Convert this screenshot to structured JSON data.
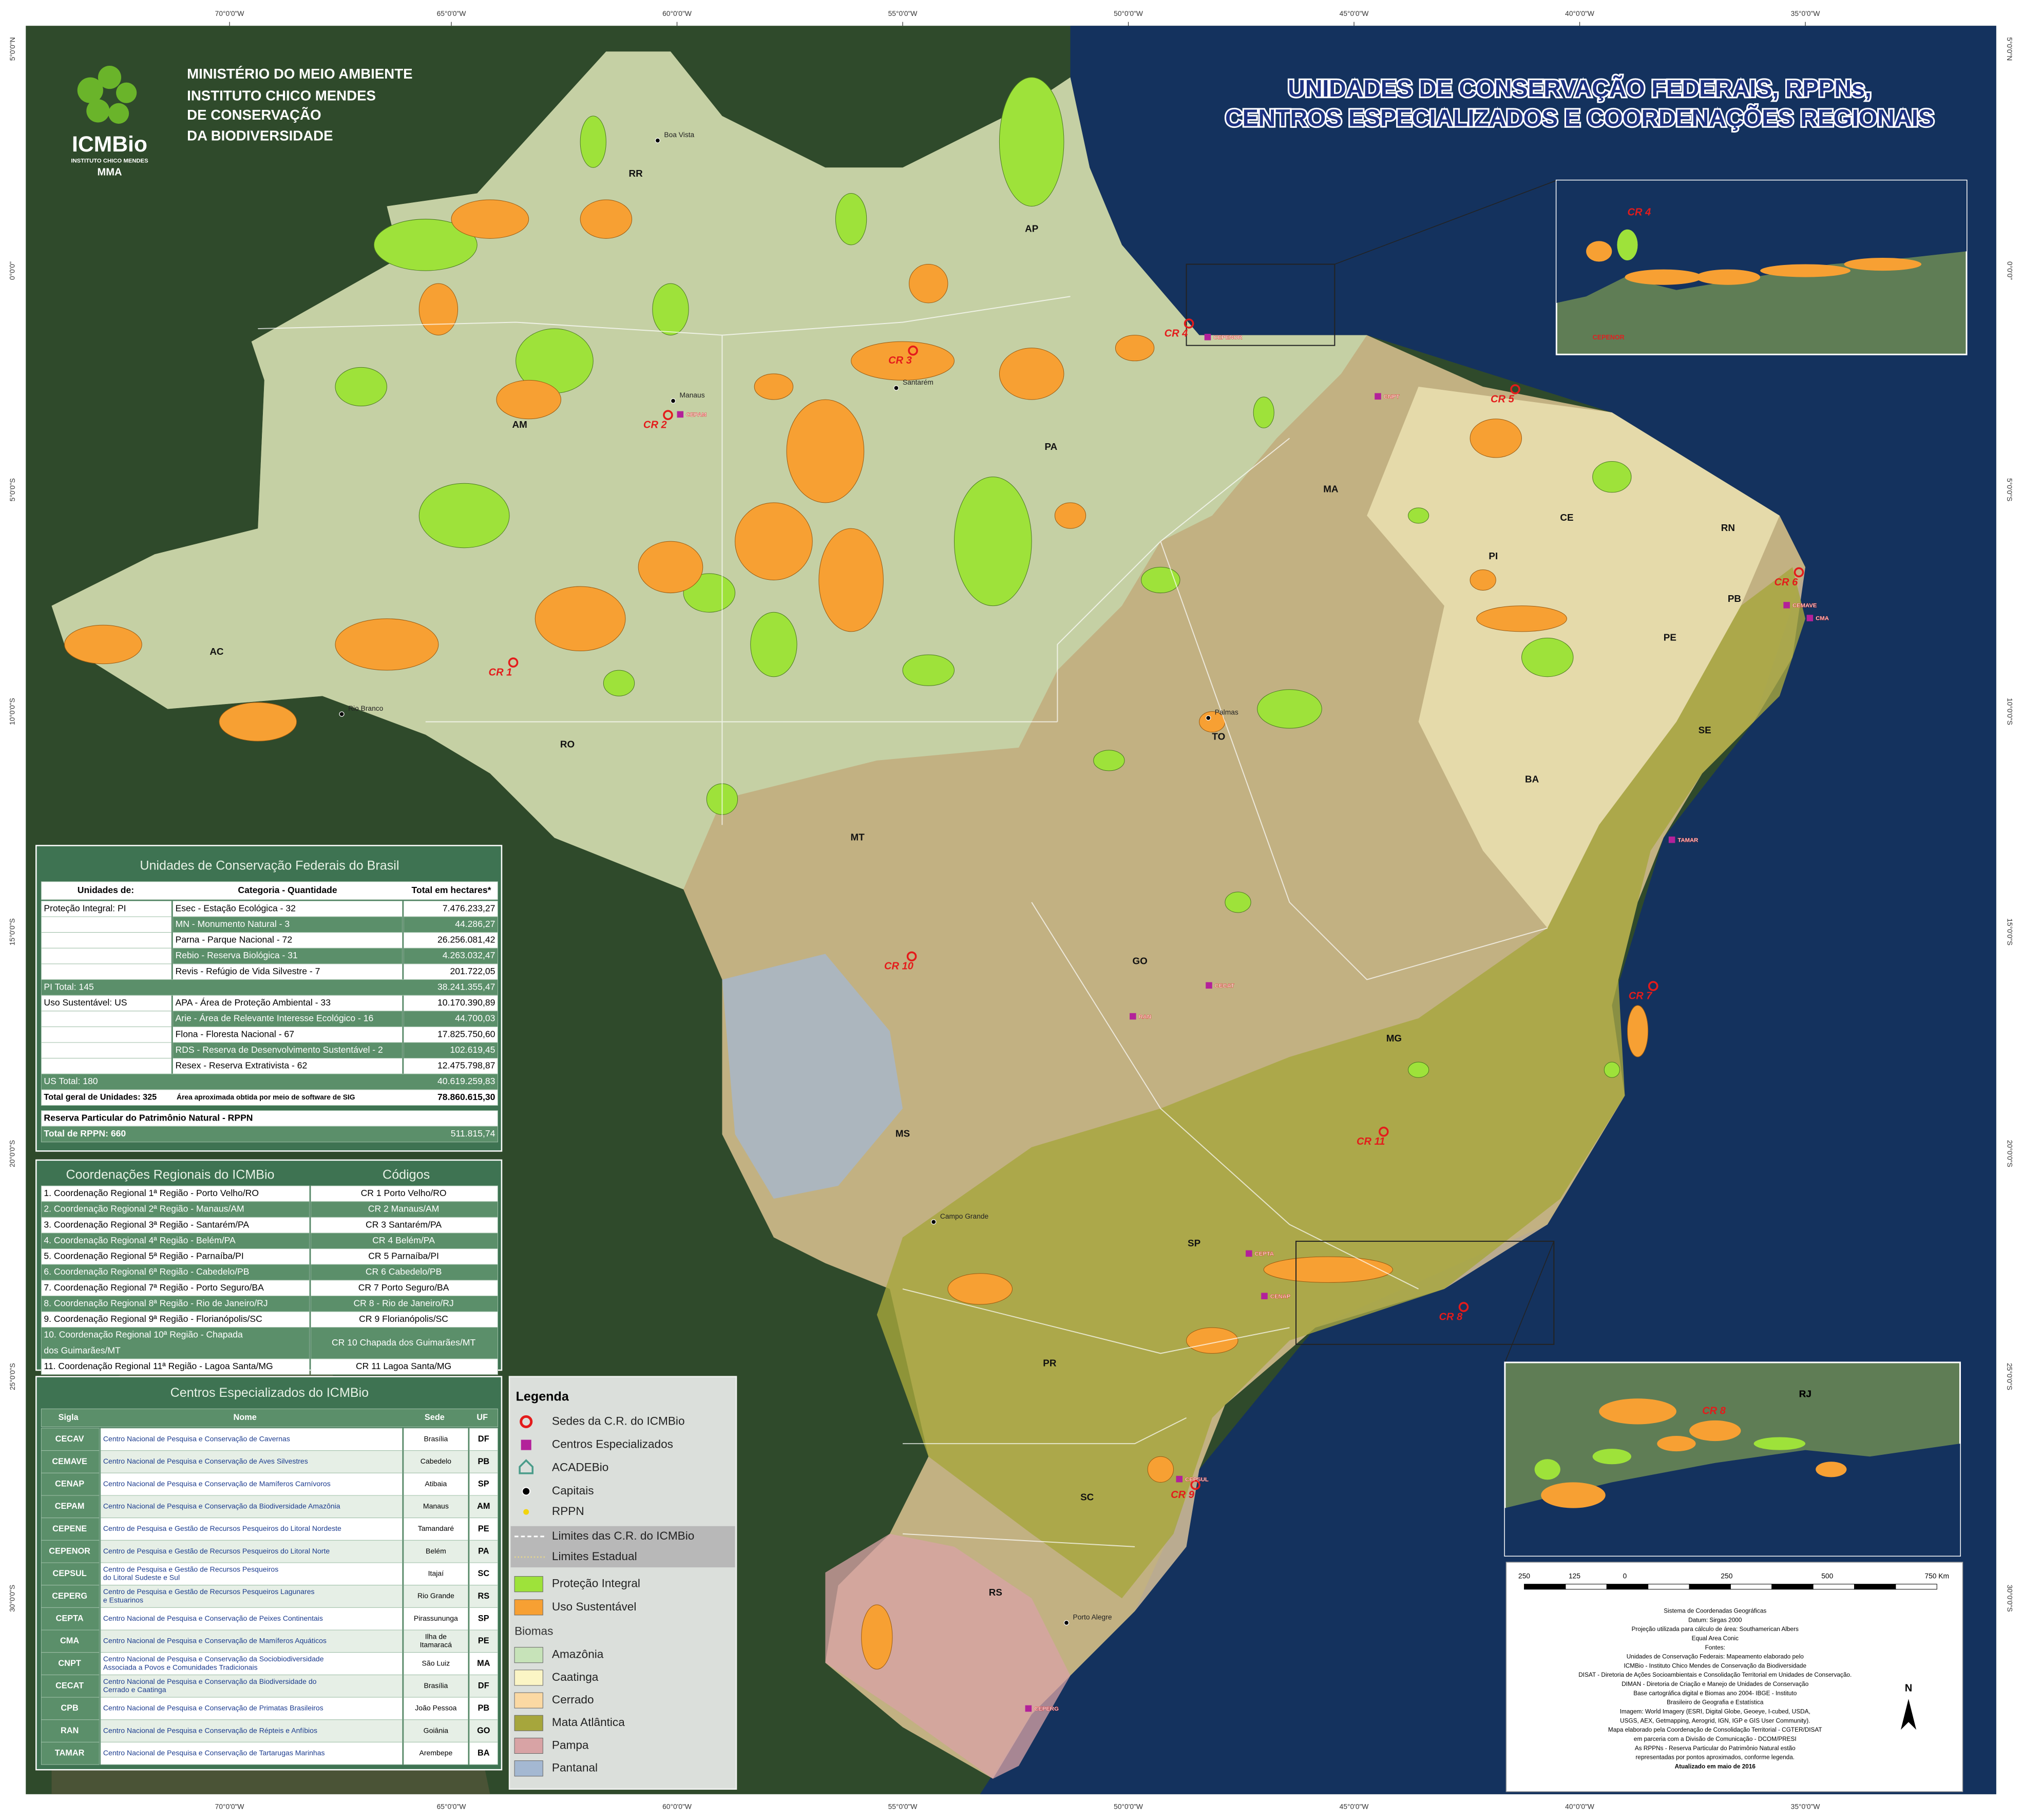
{
  "header": {
    "logo": "ICMBio",
    "logo_subtitle": "INSTITUTO CHICO MENDES",
    "logo_mma": "MMA",
    "lines": [
      "MINISTÉRIO DO MEIO AMBIENTE",
      "INSTITUTO CHICO MENDES",
      "DE CONSERVAÇÃO",
      "DA BIODIVERSIDADE"
    ]
  },
  "title": [
    "UNIDADES DE CONSERVAÇÃO FEDERAIS, RPPNs,",
    "CENTROS ESPECIALIZADOS E COORDENAÇÕES REGIONAIS"
  ],
  "graticule": {
    "longitudes": [
      "70°0'0\"W",
      "65°0'0\"W",
      "60°0'0\"W",
      "55°0'0\"W",
      "50°0'0\"W",
      "45°0'0\"W",
      "40°0'0\"W",
      "35°0'0\"W"
    ],
    "latitudes": [
      "5°0'0\"N",
      "0°0'0\"",
      "5°0'0\"S",
      "10°0'0\"S",
      "15°0'0\"S",
      "20°0'0\"S",
      "25°0'0\"S",
      "30°0'0\"S"
    ]
  },
  "map": {
    "states": [
      "RR",
      "AP",
      "AM",
      "PA",
      "MA",
      "CE",
      "RN",
      "PI",
      "PB",
      "PE",
      "AC",
      "RO",
      "TO",
      "SE",
      "BA",
      "MT",
      "GO",
      "MG",
      "MS",
      "SP",
      "RJ",
      "PR",
      "SC",
      "RS"
    ],
    "regional_offices": [
      "CR 1",
      "CR 2",
      "CR 3",
      "CR 4",
      "CR 5",
      "CR 6",
      "CR 7",
      "CR 8",
      "CR 9",
      "CR 10",
      "CR 11"
    ],
    "centers": [
      "CEPAM",
      "CEPENOR",
      "CNPT",
      "CEMAVE",
      "CMA",
      "TAMAR",
      "RAN",
      "CECAT",
      "CEPTA",
      "CENAP",
      "CEPSUL",
      "CEPERG"
    ],
    "cities": [
      "Manaus",
      "Boa Vista",
      "Santarém",
      "Rio Branco",
      "Palmas",
      "Campo Grande",
      "Porto Alegre"
    ]
  },
  "units_table": {
    "title": "Unidades de Conservação Federais do Brasil",
    "columns": [
      "Unidades de:",
      "Categoria - Quantidade",
      "Total em hectares*"
    ],
    "groups": [
      {
        "label": "Proteção Integral: PI",
        "rows": [
          [
            "Esec - Estação Ecológica - 32",
            "7.476.233,27"
          ],
          [
            "MN - Monumento Natural - 3",
            "44.286,27"
          ],
          [
            "Parna - Parque Nacional - 72",
            "26.256.081,42"
          ],
          [
            "Rebio - Reserva Biológica - 31",
            "4.263.032,47"
          ],
          [
            "Revis - Refúgio de Vida Silvestre - 7",
            "201.722,05"
          ]
        ],
        "total": [
          "PI Total: 145",
          "38.241.355,47"
        ]
      },
      {
        "label": "Uso Sustentável: US",
        "rows": [
          [
            "APA - Área de Proteção Ambiental - 33",
            "10.170.390,89"
          ],
          [
            "Arie - Área de Relevante Interesse Ecológico - 16",
            "44.700,03"
          ],
          [
            "Flona - Floresta Nacional - 67",
            "17.825.750,60"
          ],
          [
            "RDS - Reserva de Desenvolvimento Sustentável - 2",
            "102.619,45"
          ],
          [
            "Resex - Reserva Extrativista - 62",
            "12.475.798,87"
          ]
        ],
        "total": [
          "US Total: 180",
          "40.619.259,83"
        ]
      }
    ],
    "grand_total": [
      "Total geral de Unidades: 325",
      "Área aproximada obtida por meio de software de SIG",
      "78.860.615,30"
    ],
    "rppn_title": "Reserva Particular do Patrimônio Natural - RPPN",
    "rppn_total": [
      "Total de RPPN: 660",
      "511.815,74"
    ]
  },
  "regional_table": {
    "columns": [
      "Coordenações Regionais do ICMBio",
      "Códigos"
    ],
    "rows": [
      {
        "name": [
          "1. Coordenação Regional 1ª Região - Porto Velho/RO"
        ],
        "code": "CR 1 Porto Velho/RO"
      },
      {
        "name": [
          "2. Coordenação Regional 2ª Região - Manaus/AM"
        ],
        "code": "CR 2 Manaus/AM"
      },
      {
        "name": [
          "3. Coordenação Regional 3ª Região - Santarém/PA"
        ],
        "code": "CR 3 Santarém/PA"
      },
      {
        "name": [
          "4. Coordenação Regional 4ª Região - Belém/PA"
        ],
        "code": "CR 4 Belém/PA"
      },
      {
        "name": [
          "5. Coordenação Regional 5ª Região - Parnaíba/PI"
        ],
        "code": "CR 5 Parnaíba/PI"
      },
      {
        "name": [
          "6. Coordenação Regional 6ª Região - Cabedelo/PB"
        ],
        "code": "CR 6 Cabedelo/PB"
      },
      {
        "name": [
          "7. Coordenação Regional 7ª Região - Porto Seguro/BA"
        ],
        "code": "CR 7 Porto Seguro/BA"
      },
      {
        "name": [
          "8. Coordenação Regional 8ª Região - Rio de Janeiro/RJ"
        ],
        "code": "CR 8 - Rio de Janeiro/RJ"
      },
      {
        "name": [
          "9. Coordenação Regional 9ª Região - Florianópolis/SC"
        ],
        "code": "CR 9 Florianópolis/SC"
      },
      {
        "name": [
          "10. Coordenação Regional 10ª Região - Chapada",
          "dos Guimarães/MT"
        ],
        "code": "CR 10 Chapada dos Guimarães/MT"
      },
      {
        "name": [
          "11. Coordenação Regional 11ª Região - Lagoa Santa/MG"
        ],
        "code": "CR 11 Lagoa Santa/MG"
      }
    ]
  },
  "centers_table": {
    "title": "Centros Especializados do ICMBio",
    "columns": [
      "Sigla",
      "Nome",
      "Sede",
      "UF"
    ],
    "rows": [
      {
        "code": "CECAV",
        "name": [
          "Centro Nacional de Pesquisa e Conservação de Cavernas"
        ],
        "seat": [
          "Brasília"
        ],
        "uf": "DF"
      },
      {
        "code": "CEMAVE",
        "name": [
          "Centro Nacional de Pesquisa e Conservação de Aves Silvestres"
        ],
        "seat": [
          "Cabedelo"
        ],
        "uf": "PB"
      },
      {
        "code": "CENAP",
        "name": [
          "Centro Nacional de Pesquisa e Conservação de Mamíferos Carnívoros"
        ],
        "seat": [
          "Atibaia"
        ],
        "uf": "SP"
      },
      {
        "code": "CEPAM",
        "name": [
          "Centro Nacional de Pesquisa e Conservação da Biodiversidade Amazônia"
        ],
        "seat": [
          "Manaus"
        ],
        "uf": "AM"
      },
      {
        "code": "CEPENE",
        "name": [
          "Centro de Pesquisa e Gestão de Recursos Pesqueiros do Litoral Nordeste"
        ],
        "seat": [
          "Tamandaré"
        ],
        "uf": "PE"
      },
      {
        "code": "CEPENOR",
        "name": [
          "Centro de Pesquisa e Gestão de Recursos Pesqueiros do Litoral Norte"
        ],
        "seat": [
          "Belém"
        ],
        "uf": "PA"
      },
      {
        "code": "CEPSUL",
        "name": [
          "Centro de Pesquisa e Gestão de Recursos Pesqueiros",
          "do Litoral Sudeste e Sul"
        ],
        "seat": [
          "Itajaí"
        ],
        "uf": "SC"
      },
      {
        "code": "CEPERG",
        "name": [
          "Centro de Pesquisa e Gestão de Recursos Pesqueiros Lagunares",
          "e Estuarinos"
        ],
        "seat": [
          "Rio Grande"
        ],
        "uf": "RS"
      },
      {
        "code": "CEPTA",
        "name": [
          "Centro Nacional de Pesquisa e Conservação de Peixes Continentais"
        ],
        "seat": [
          "Pirassununga"
        ],
        "uf": "SP"
      },
      {
        "code": "CMA",
        "name": [
          "Centro Nacional de Pesquisa e Conservação de Mamíferos Aquáticos"
        ],
        "seat": [
          "Ilha de",
          "Itamaracá"
        ],
        "uf": "PE"
      },
      {
        "code": "CNPT",
        "name": [
          "Centro Nacional de Pesquisa e Conservação da Sociobiodiversidade",
          "Associada a Povos e Comunidades Tradicionais"
        ],
        "seat": [
          "São Luiz"
        ],
        "uf": "MA"
      },
      {
        "code": "CECAT",
        "name": [
          "Centro Nacional de Pesquisa e Conservação da Biodiversidade do",
          "Cerrado e Caatinga"
        ],
        "seat": [
          "Brasília"
        ],
        "uf": "DF"
      },
      {
        "code": "CPB",
        "name": [
          "Centro Nacional de Pesquisa e Conservação de Primatas Brasileiros"
        ],
        "seat": [
          "João Pessoa"
        ],
        "uf": "PB"
      },
      {
        "code": "RAN",
        "name": [
          "Centro Nacional de Pesquisa e Conservação de Répteis e Anfíbios"
        ],
        "seat": [
          "Goiânia"
        ],
        "uf": "GO"
      },
      {
        "code": "TAMAR",
        "name": [
          "Centro Nacional de Pesquisa e Conservação de Tartarugas Marinhas"
        ],
        "seat": [
          "Arembepe"
        ],
        "uf": "BA"
      }
    ]
  },
  "legend": {
    "title": "Legenda",
    "items": [
      {
        "label": "Sedes da C.R. do ICMBio"
      },
      {
        "label": "Centros Especializados"
      },
      {
        "label": "ACADEBio"
      },
      {
        "label": "Capitais"
      },
      {
        "label": "RPPN"
      },
      {
        "label": "Limites das C.R. do ICMBio"
      },
      {
        "label": "Limites Estadual"
      },
      {
        "label": "Proteção Integral",
        "color": "#9ee23a"
      },
      {
        "label": "Uso Sustentável",
        "color": "#f7a033"
      }
    ],
    "biomes_title": "Biomas",
    "biomes": [
      {
        "name": "Amazônia",
        "color": "#c7e3b9"
      },
      {
        "name": "Caatinga",
        "color": "#fbf5c5"
      },
      {
        "name": "Cerrado",
        "color": "#fbd9a3"
      },
      {
        "name": "Mata Atlântica",
        "color": "#a6a63c"
      },
      {
        "name": "Pampa",
        "color": "#d8a3a5"
      },
      {
        "name": "Pantanal",
        "color": "#a4b8d2"
      }
    ]
  },
  "info": {
    "scale": [
      "250",
      "125",
      "0",
      "250",
      "500",
      "750 Km"
    ],
    "notes": [
      "Sistema de Coordenadas Geográficas",
      "Datum: Sirgas 2000",
      "Projeção utilizada para cálculo de área: Southamerican Albers",
      "Equal Area Conic",
      "Fontes:",
      "Unidades de Conservação Federais: Mapeamento elaborado pelo",
      "ICMBio - Instituto Chico Mendes de Conservação da Biodiversidade",
      "DISAT - Diretoria de Ações Socioambientais e Consolidação Territorial em Unidades de Conservação.",
      "DIMAN - Diretoria de Criação e Manejo de Unidades de Conservação",
      "Base cartográfica digital e Biomas ano 2004- IBGE - Instituto",
      "Brasileiro de Geografia e Estatística",
      "Imagem: World Imagery (ESRI, Digital Globe, Geoeye, I-cubed, USDA,",
      "USGS, AEX, Getmapping, Aerogrid, IGN, IGP e GIS User Community).",
      "Mapa elaborado pela Coordenação de Consolidação Territorial - CGTER/DISAT",
      "em parceria com a Divisão de Comunicação - DCOM/PRESI",
      "As RPPNs - Reserva Particular do Patrimônio Natural estão",
      "representadas por pontos aproximados, conforme legenda.",
      "Atualizado em maio de 2016"
    ],
    "north": "N"
  }
}
